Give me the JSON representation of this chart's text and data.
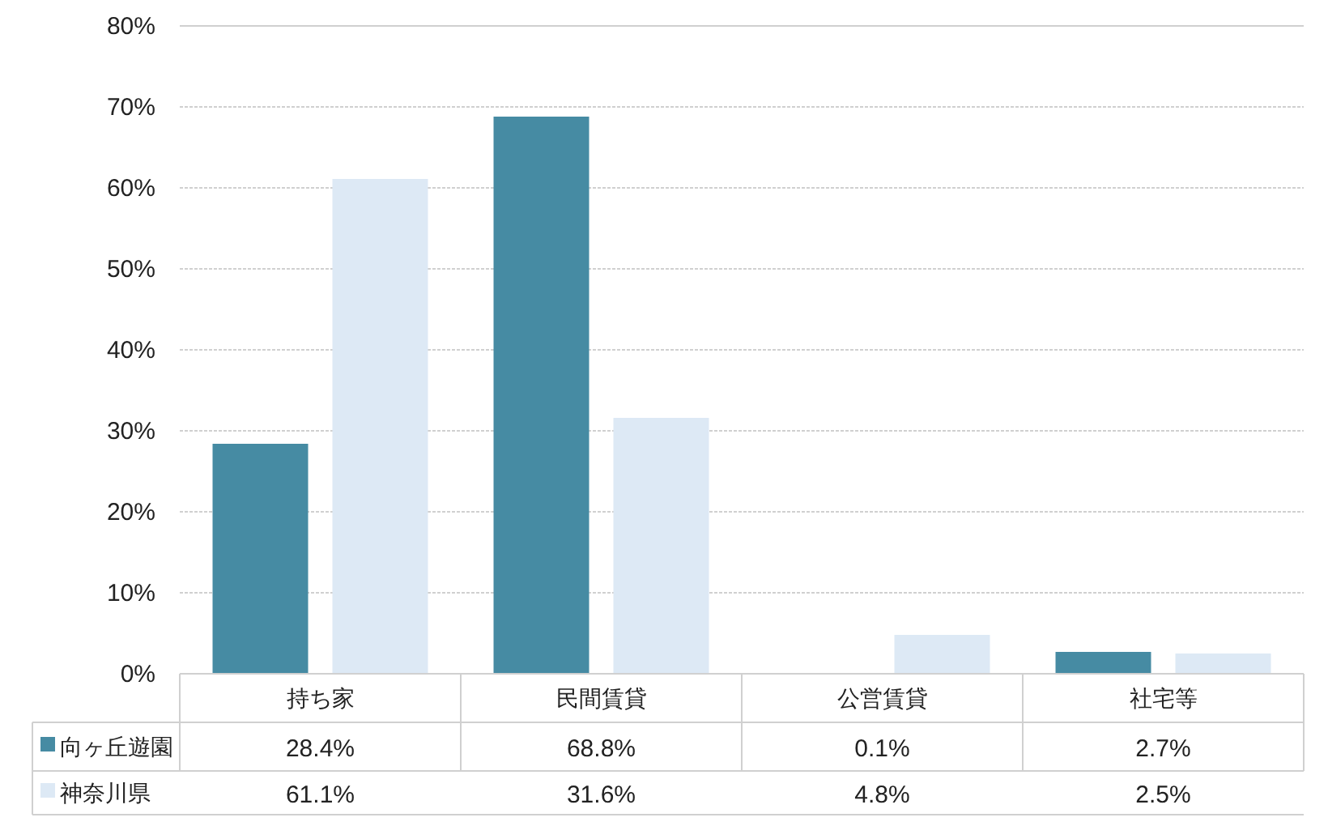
{
  "chart_data": {
    "type": "bar",
    "categories": [
      "持ち家",
      "民間賃貸",
      "公営賃貸",
      "社宅等"
    ],
    "series": [
      {
        "name": "向ヶ丘遊園",
        "color": "#468ba3",
        "values": [
          28.4,
          68.8,
          0.1,
          2.7
        ],
        "value_labels": [
          "28.4%",
          "68.8%",
          "0.1%",
          "2.7%"
        ]
      },
      {
        "name": "神奈川県",
        "color": "#dde9f5",
        "values": [
          61.1,
          31.6,
          4.8,
          2.5
        ],
        "value_labels": [
          "61.1%",
          "31.6%",
          "4.8%",
          "2.5%"
        ]
      }
    ],
    "ylim": [
      0,
      80
    ],
    "yticks": [
      {
        "value": 0,
        "label": "0%"
      },
      {
        "value": 10,
        "label": "10%"
      },
      {
        "value": 20,
        "label": "20%"
      },
      {
        "value": 30,
        "label": "30%"
      },
      {
        "value": 40,
        "label": "40%"
      },
      {
        "value": 50,
        "label": "50%"
      },
      {
        "value": 60,
        "label": "60%"
      },
      {
        "value": 70,
        "label": "70%"
      },
      {
        "value": 80,
        "label": "80%"
      }
    ],
    "grid": "y",
    "legend": "bottom left"
  }
}
